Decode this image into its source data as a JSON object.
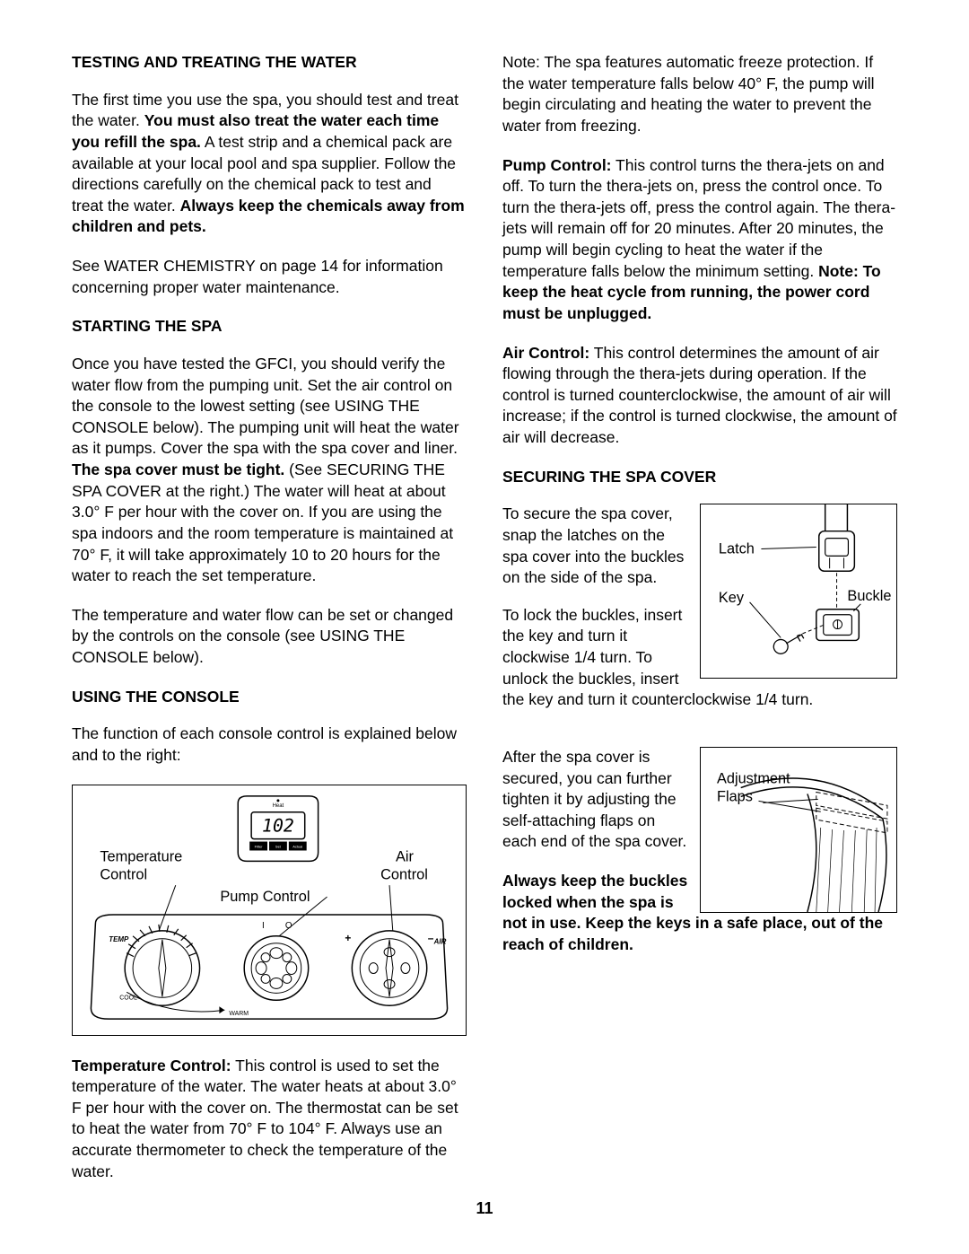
{
  "page_number": "11",
  "left": {
    "h1": "TESTING AND TREATING THE WATER",
    "p1a": "The first time you use the spa, you should test and treat the water. ",
    "p1b": "You must also treat the water each time you refill the spa.",
    "p1c": " A test strip and a chemical pack are available at your local pool and spa supplier. Follow the directions carefully on the chemical pack to test and treat the water. ",
    "p1d": "Always keep the chemicals away from children and pets.",
    "p2": "See WATER CHEMISTRY on page 14 for information concerning proper water maintenance.",
    "h2": "STARTING THE SPA",
    "p3a": "Once you have tested the GFCI, you should verify the water flow from the pumping unit. Set the air control on the console to the lowest setting (see USING THE CONSOLE below). The pumping unit will heat the water as it pumps. Cover the spa with the spa cover and liner. ",
    "p3b": "The spa cover must be tight.",
    "p3c": " (See SECURING THE SPA COVER at the right.) The water will heat at about 3.0° F per hour with the cover on. If you are using the spa indoors and the room temperature is maintained at 70° F, it will take approximately 10 to 20 hours for the water to reach the set temperature.",
    "p4": "The temperature and water flow can be set or changed by the controls on the console (see USING THE CONSOLE below).",
    "h3": "USING THE CONSOLE",
    "p5": "The function of each console control is explained below and to the right:",
    "p6a": "Temperature Control:",
    "p6b": " This control is used to set the temperature of the water. The water heats at about 3.0° F per hour with the cover on. The thermostat can be set to heat the water from 70° F to 104° F. Always use an accurate thermometer to check the temperature of the water."
  },
  "right": {
    "p1": "Note: The spa features automatic freeze protection. If the water temperature falls below 40° F, the pump will begin circulating and heating the water to prevent the water from freezing.",
    "p2a": "Pump Control:",
    "p2b": " This control turns the thera-jets on and off. To turn the thera-jets on, press the control once. To turn the thera-jets off, press the control again. The thera-jets will remain off for 20 minutes. After 20 minutes, the pump will begin cycling to heat the water if the temperature falls below the minimum setting. ",
    "p2c": "Note: To keep the heat cycle from running, the power cord must be unplugged.",
    "p3a": "Air Control:",
    "p3b": " This control determines the amount of air flowing through the thera-jets during operation. If the control is turned counterclockwise, the amount of air will increase; if the control is turned clockwise, the amount of air will decrease.",
    "h1": "SECURING THE SPA COVER",
    "p4": "To secure the spa cover, snap the latches on the spa cover into the buckles on the side of the spa.",
    "p5": "To lock the buckles, insert the key and turn it clockwise 1/4 turn. To unlock the buckles, insert the key and turn it counterclockwise 1/4 turn.",
    "p6": "After the spa cover is secured, you can further tighten it by adjusting the self-attaching flaps on each end of the spa cover.",
    "p7": "Always keep the buckles locked when the spa is not in use. Keep the keys in a safe place, out of the reach of children."
  },
  "console": {
    "temp_label": "Temperature Control",
    "air_label": "Air Control",
    "pump_label": "Pump Control",
    "display": "102",
    "disp_sub1": "Filter Cycle",
    "disp_sub2": "Set Temp",
    "disp_sub3": "Actual Temp",
    "temp_tag": "TEMP",
    "air_tag": "AIR",
    "cool": "COOL",
    "warm": "WARM"
  },
  "latch_fig": {
    "latch": "Latch",
    "key": "Key",
    "buckle": "Buckle"
  },
  "flap_fig": {
    "label": "Adjustment Flaps"
  },
  "colors": {
    "text": "#000000",
    "border": "#000000",
    "bg": "#ffffff"
  }
}
